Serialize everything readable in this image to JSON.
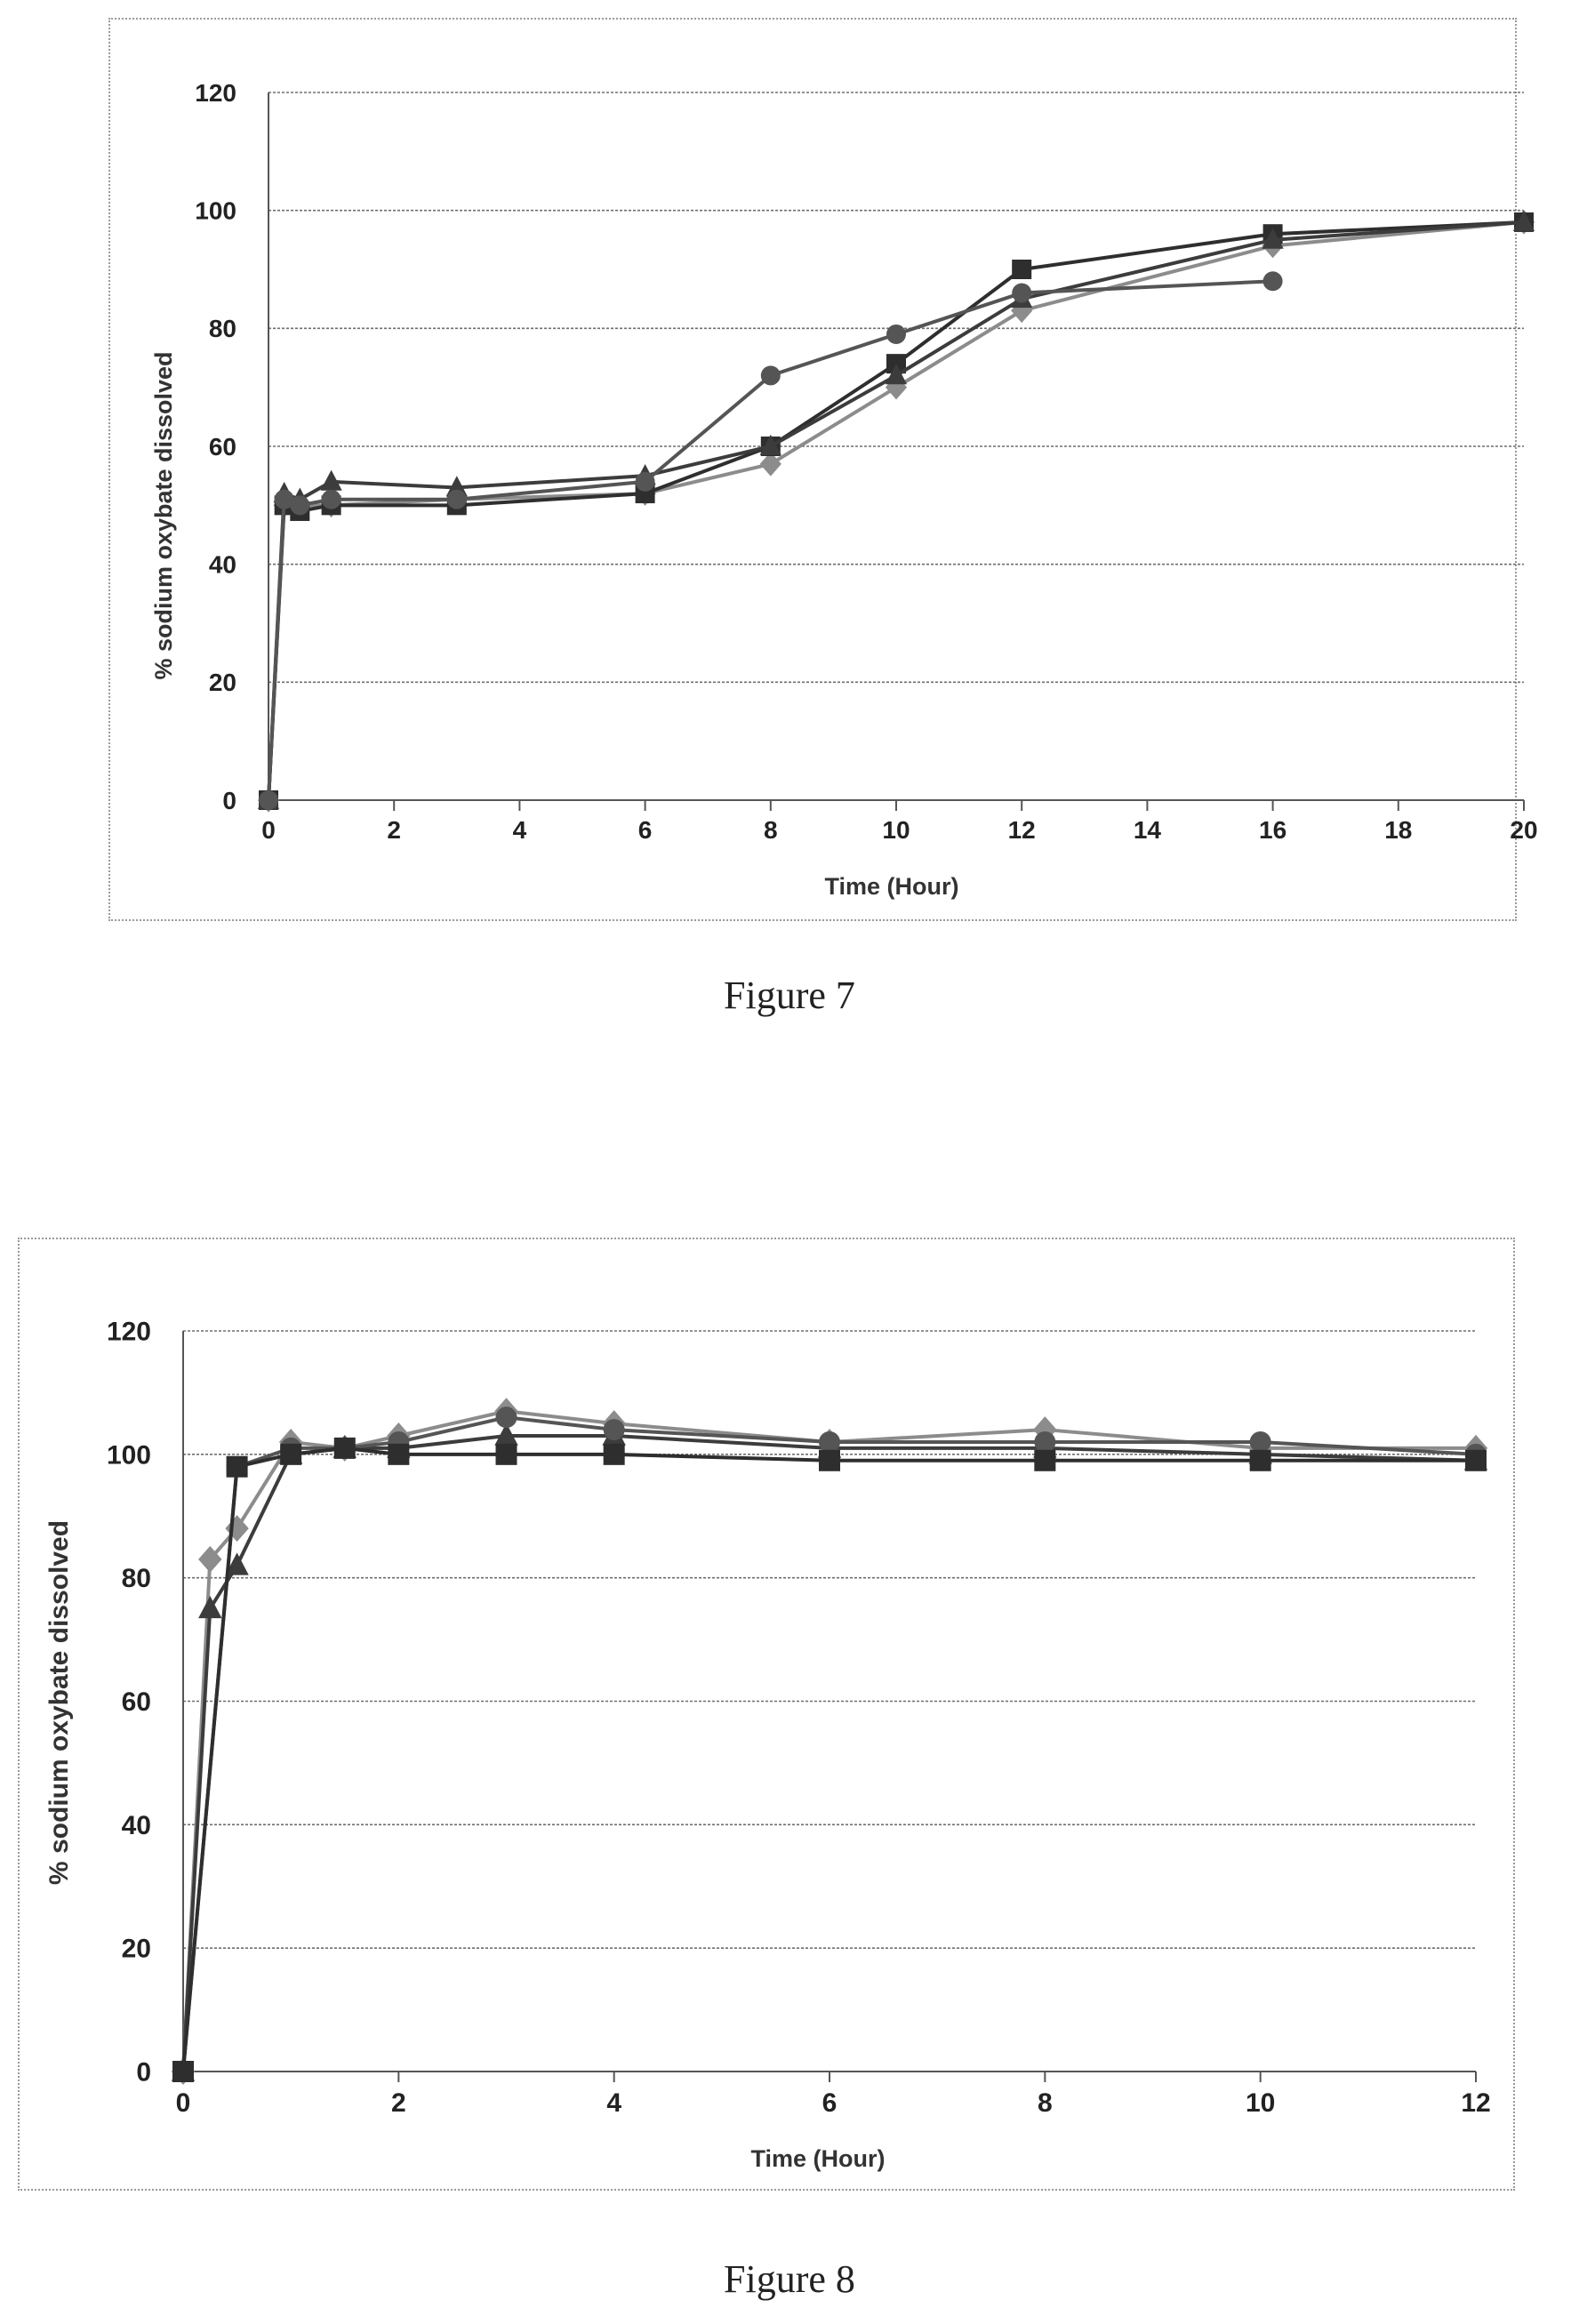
{
  "figures": [
    {
      "caption": "Figure 7",
      "chart_data": {
        "type": "line",
        "title": "",
        "xlabel": "Time (Hour)",
        "ylabel": "% sodium oxybate dissolved",
        "xlim": [
          0,
          20
        ],
        "ylim": [
          0,
          120
        ],
        "xticks": [
          0,
          2,
          4,
          6,
          8,
          10,
          12,
          14,
          16,
          18,
          20
        ],
        "yticks": [
          0,
          20,
          40,
          60,
          80,
          100,
          120
        ],
        "grid": "horizontal",
        "legend": "none",
        "series": [
          {
            "marker": "diamond",
            "color": "#8c8c8c",
            "x": [
              0,
              0.25,
              0.5,
              1,
              3,
              6,
              8,
              10,
              12,
              16,
              20
            ],
            "y": [
              0,
              50,
              50,
              50,
              51,
              52,
              57,
              70,
              83,
              94,
              98
            ]
          },
          {
            "marker": "square",
            "color": "#2e2e2e",
            "x": [
              0,
              0.25,
              0.5,
              1,
              3,
              6,
              8,
              10,
              12,
              16,
              20
            ],
            "y": [
              0,
              50,
              49,
              50,
              50,
              52,
              60,
              74,
              90,
              96,
              98
            ]
          },
          {
            "marker": "triangle",
            "color": "#3c3c3c",
            "x": [
              0,
              0.25,
              0.5,
              1,
              3,
              6,
              8,
              10,
              12,
              16,
              20
            ],
            "y": [
              0,
              52,
              51,
              54,
              53,
              55,
              60,
              72,
              85,
              95,
              98
            ]
          },
          {
            "marker": "circle",
            "color": "#555555",
            "x": [
              0,
              0.25,
              0.5,
              1,
              3,
              6,
              8,
              10,
              12,
              16
            ],
            "y": [
              0,
              51,
              50,
              51,
              51,
              54,
              72,
              79,
              86,
              88
            ]
          }
        ]
      }
    },
    {
      "caption": "Figure 8",
      "chart_data": {
        "type": "line",
        "title": "",
        "xlabel": "Time (Hour)",
        "ylabel": "% sodium oxybate dissolved",
        "xlim": [
          0,
          12
        ],
        "ylim": [
          0,
          120
        ],
        "xticks": [
          0,
          2,
          4,
          6,
          8,
          10,
          12
        ],
        "yticks": [
          0,
          20,
          40,
          60,
          80,
          100,
          120
        ],
        "grid": "horizontal",
        "legend": "none",
        "series": [
          {
            "marker": "diamond",
            "color": "#8c8c8c",
            "x": [
              0,
              0.25,
              0.5,
              1,
              1.5,
              2,
              3,
              4,
              6,
              8,
              10,
              12
            ],
            "y": [
              0,
              83,
              88,
              102,
              101,
              103,
              107,
              105,
              102,
              104,
              101,
              101
            ]
          },
          {
            "marker": "triangle",
            "color": "#3c3c3c",
            "x": [
              0,
              0.25,
              0.5,
              1,
              1.5,
              2,
              3,
              4,
              6,
              8,
              10,
              12
            ],
            "y": [
              0,
              75,
              82,
              100,
              101,
              101,
              103,
              103,
              101,
              101,
              100,
              99
            ]
          },
          {
            "marker": "circle",
            "color": "#555555",
            "x": [
              0,
              0.5,
              1,
              1.5,
              2,
              3,
              4,
              6,
              8,
              10,
              12
            ],
            "y": [
              0,
              98,
              101,
              101,
              102,
              106,
              104,
              102,
              102,
              102,
              100
            ]
          },
          {
            "marker": "square",
            "color": "#2e2e2e",
            "x": [
              0,
              0.5,
              1,
              1.5,
              2,
              3,
              4,
              6,
              8,
              10,
              12
            ],
            "y": [
              0,
              98,
              100,
              101,
              100,
              100,
              100,
              99,
              99,
              99,
              99
            ]
          }
        ]
      }
    }
  ]
}
